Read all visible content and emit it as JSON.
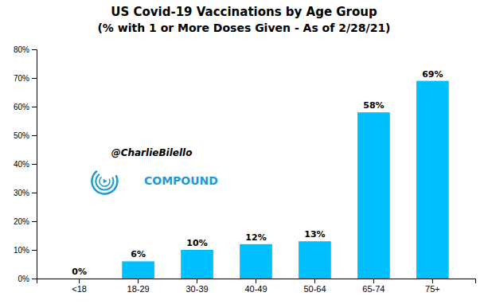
{
  "chart_data": {
    "type": "bar",
    "title": "US Covid-19 Vaccinations by Age Group",
    "subtitle": "(% with 1 or More Doses Given - As of 2/28/21)",
    "categories": [
      "<18",
      "18-29",
      "30-39",
      "40-49",
      "50-64",
      "65-74",
      "75+"
    ],
    "values": [
      0,
      6,
      10,
      12,
      13,
      58,
      69
    ],
    "value_labels": [
      "0%",
      "6%",
      "10%",
      "12%",
      "13%",
      "58%",
      "69%"
    ],
    "data_labels": true,
    "color": "#00BFFF",
    "ylim": [
      0,
      80
    ],
    "yticks": [
      {
        "value": 0,
        "label": "0%"
      },
      {
        "value": 10,
        "label": "10%"
      },
      {
        "value": 20,
        "label": "20%"
      },
      {
        "value": 30,
        "label": "30%"
      },
      {
        "value": 40,
        "label": "40%"
      },
      {
        "value": 50,
        "label": "50%"
      },
      {
        "value": 60,
        "label": "60%"
      },
      {
        "value": 70,
        "label": "70%"
      },
      {
        "value": 80,
        "label": "80%"
      }
    ],
    "grid": false,
    "annotations": [
      "@CharlieBilello",
      "COMPOUND"
    ]
  }
}
